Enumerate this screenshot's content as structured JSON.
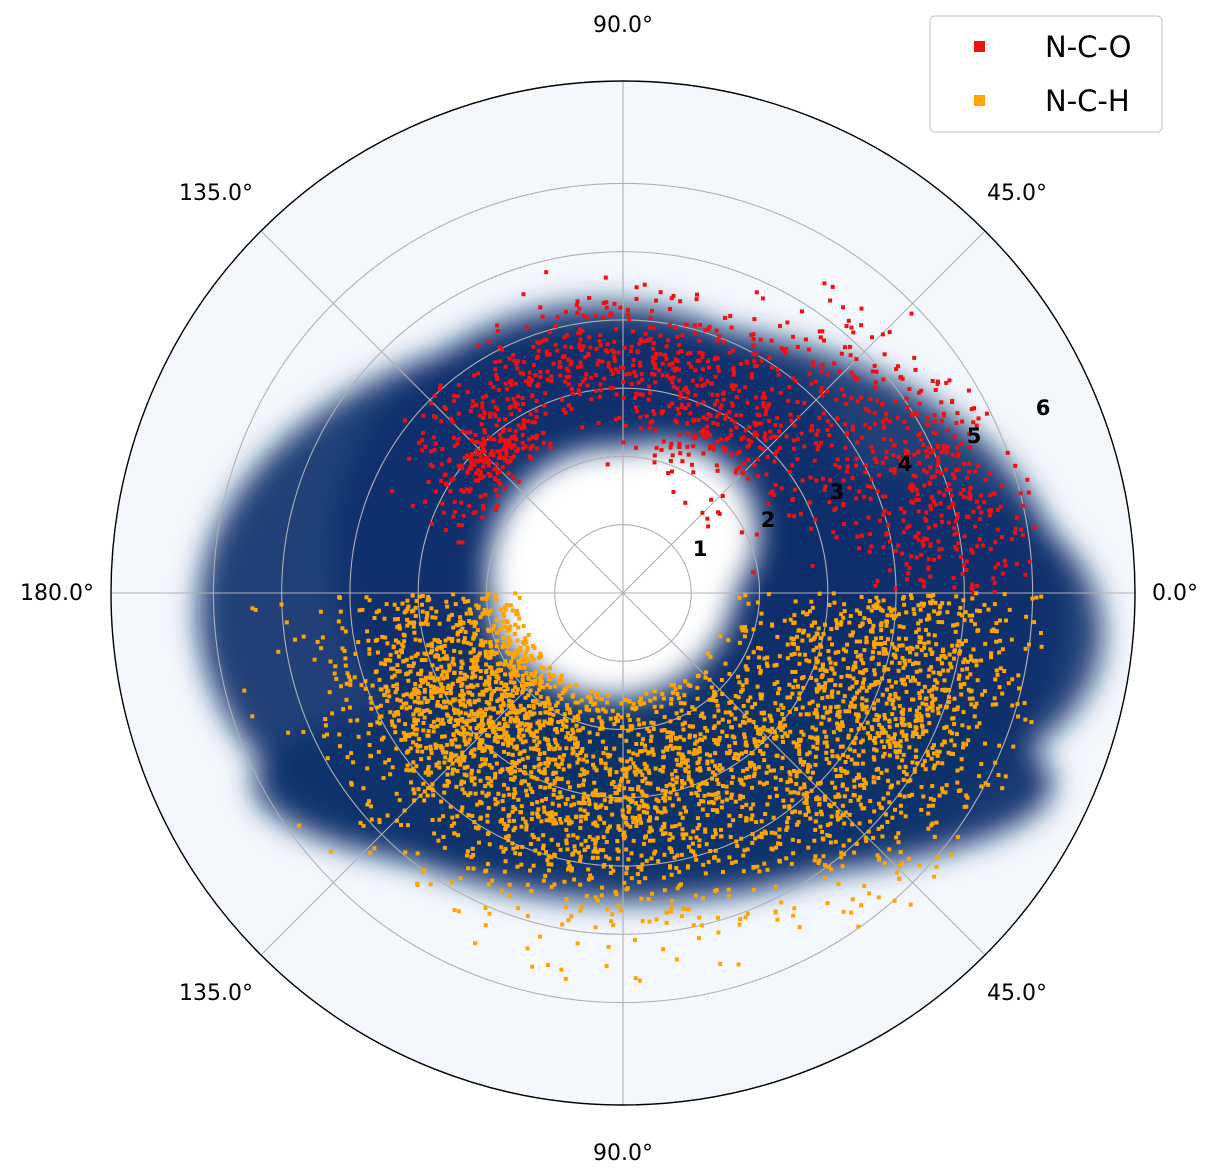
{
  "chart_data": {
    "type": "scatter",
    "projection": "polar",
    "radial_ticks": [
      "1",
      "2",
      "3",
      "4",
      "5",
      "6"
    ],
    "angle_labels": {
      "right": "0.0°",
      "upper_right": "45.0°",
      "top": "90.0°",
      "upper_left": "135.0°",
      "left": "180.0°",
      "lower_left": "135.0°",
      "bottom": "90.0°",
      "lower_right": "45.0°"
    },
    "grid": true,
    "legend_position": "top-right",
    "background_density": "blue kernel-density shading of all points",
    "series": [
      {
        "name": "N-C-O",
        "color": "#ee1111",
        "marker": "square",
        "half": "upper",
        "angle_range_deg": [
          0,
          180
        ],
        "radius_range": [
          1.5,
          6.2
        ],
        "clusters": [
          {
            "angle": 60,
            "r": 2.8,
            "spread_angle": 18,
            "spread_r": 0.5
          },
          {
            "angle": 75,
            "r": 3.6,
            "spread_angle": 22,
            "spread_r": 0.45
          },
          {
            "angle": 108,
            "r": 3.5,
            "spread_angle": 22,
            "spread_r": 0.35
          },
          {
            "angle": 135,
            "r": 2.8,
            "spread_angle": 10,
            "spread_r": 0.25
          },
          {
            "angle": 30,
            "r": 4.5,
            "spread_angle": 16,
            "spread_r": 0.6
          },
          {
            "angle": 15,
            "r": 5.0,
            "spread_angle": 12,
            "spread_r": 0.6
          }
        ]
      },
      {
        "name": "N-C-H",
        "color": "#ffa500",
        "marker": "square",
        "half": "lower",
        "angle_range_deg": [
          0,
          180
        ],
        "radius_range": [
          1.5,
          6.3
        ],
        "clusters": [
          {
            "angle": 60,
            "r": 3.2,
            "spread_angle": 40,
            "spread_r": 1.0
          },
          {
            "angle": 110,
            "r": 3.0,
            "spread_angle": 35,
            "spread_r": 1.0
          },
          {
            "angle": 20,
            "r": 4.5,
            "spread_angle": 18,
            "spread_r": 0.9
          },
          {
            "angle": 150,
            "r": 2.8,
            "spread_angle": 20,
            "spread_r": 0.8
          }
        ]
      }
    ]
  }
}
